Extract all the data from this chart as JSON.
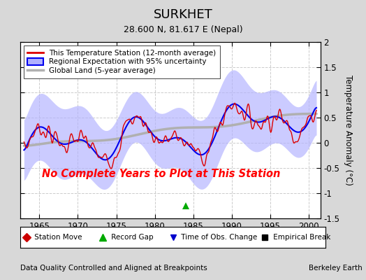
{
  "title": "SURKHET",
  "subtitle": "28.600 N, 81.617 E (Nepal)",
  "xlabel_bottom": "Data Quality Controlled and Aligned at Breakpoints",
  "xlabel_right": "Berkeley Earth",
  "ylabel": "Temperature Anomaly (°C)",
  "xlim": [
    1962.5,
    2001.5
  ],
  "ylim": [
    -1.5,
    2.0
  ],
  "yticks": [
    -1.5,
    -1.0,
    -0.5,
    0.0,
    0.5,
    1.0,
    1.5,
    2.0
  ],
  "xticks": [
    1965,
    1970,
    1975,
    1980,
    1985,
    1990,
    1995,
    2000
  ],
  "no_data_text": "No Complete Years to Plot at This Station",
  "record_gap_x": 1984.0,
  "record_gap_y": -1.25,
  "bg_color": "#d8d8d8",
  "plot_bg_color": "#ffffff",
  "regional_fill_color": "#b0b0ff",
  "regional_line_color": "#0000ee",
  "global_line_color": "#b0b0b0",
  "station_line_color": "#dd0000",
  "legend_labels": [
    "This Temperature Station (12-month average)",
    "Regional Expectation with 95% uncertainty",
    "Global Land (5-year average)"
  ],
  "sym_legend": {
    "station_move": "◆ Station Move",
    "record_gap": "▲ Record Gap",
    "time_obs": "▼ Time of Obs. Change",
    "empirical": "■ Empirical Break"
  }
}
